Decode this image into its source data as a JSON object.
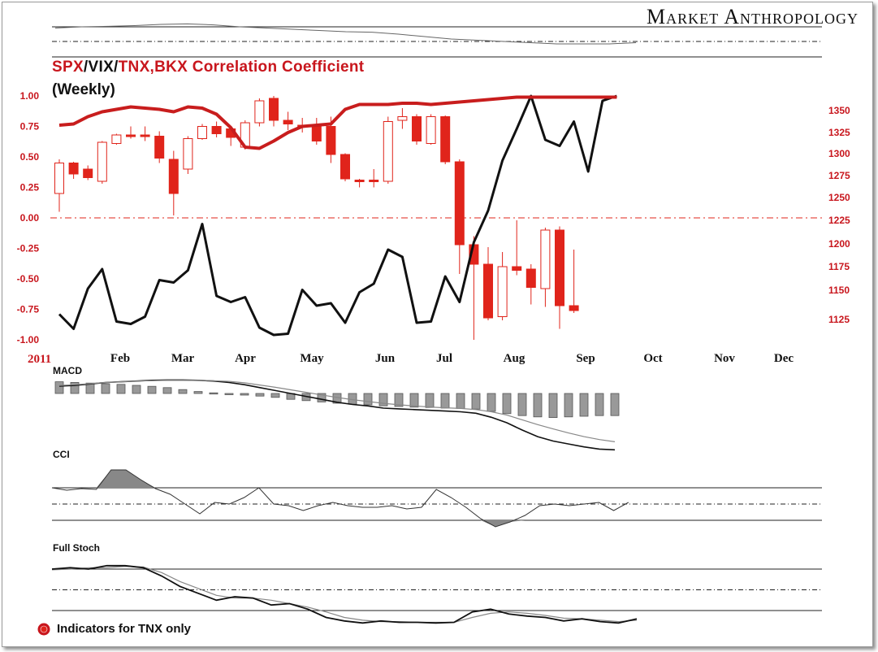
{
  "brand": "Market Anthropology",
  "title_parts": [
    "SPX",
    "/",
    "VIX",
    "/",
    "TNX,BKX",
    " Correlation Coefficient"
  ],
  "subtitle": "(Weekly)",
  "footnote": "Indicators for TNX only",
  "indicator_labels": {
    "macd": "MACD",
    "cci": "CCI",
    "stoch": "Full Stoch"
  },
  "colors": {
    "red": "#e0241b",
    "dark_red": "#c8161d",
    "black": "#111111",
    "gray": "#888888"
  },
  "chart_data": {
    "type": "line",
    "title": "SPX/VIX/TNX,BKX Correlation Coefficient",
    "subtitle": "(Weekly)",
    "x_year_label": "2011",
    "x_tick_labels": [
      "Feb",
      "Mar",
      "Apr",
      "May",
      "Jun",
      "Jul",
      "Aug",
      "Sep",
      "Oct",
      "Nov",
      "Dec"
    ],
    "left_axis": {
      "ticks": [
        "1.00",
        "0.75",
        "0.50",
        "0.25",
        "0.00",
        "-0.25",
        "-0.50",
        "-0.75",
        "-1.00"
      ],
      "ylim": [
        -1,
        1
      ]
    },
    "right_axis": {
      "ticks": [
        "1350",
        "1325",
        "1300",
        "1275",
        "1250",
        "1225",
        "1200",
        "1175",
        "1150",
        "1125"
      ]
    },
    "zero_line": 0,
    "series": [
      {
        "color": "black",
        "values": [
          -0.79,
          -0.91,
          -0.58,
          -0.42,
          -0.85,
          -0.87,
          -0.81,
          -0.51,
          -0.53,
          -0.43,
          -0.05,
          -0.64,
          -0.69,
          -0.65,
          -0.9,
          -0.96,
          -0.95,
          -0.59,
          -0.72,
          -0.7,
          -0.86,
          -0.61,
          -0.54,
          -0.26,
          -0.32,
          -0.86,
          -0.85,
          -0.48,
          -0.69,
          -0.2,
          0.06,
          0.47,
          0.73,
          1.0,
          0.64,
          0.59,
          0.79,
          0.38,
          0.96,
          1.0
        ]
      },
      {
        "color": "red",
        "values": [
          0.76,
          0.77,
          0.83,
          0.87,
          0.89,
          0.91,
          0.9,
          0.89,
          0.87,
          0.91,
          0.9,
          0.85,
          0.74,
          0.58,
          0.57,
          0.63,
          0.7,
          0.75,
          0.76,
          0.77,
          0.89,
          0.93,
          0.93,
          0.93,
          0.94,
          0.94,
          0.93,
          0.94,
          0.95,
          0.96,
          0.97,
          0.98,
          0.99,
          0.99,
          0.99,
          0.99,
          0.99,
          0.99,
          0.99,
          0.99
        ]
      }
    ],
    "candles": [
      {
        "o": 0.2,
        "c": 0.45,
        "h": 0.48,
        "l": 0.05,
        "up": true
      },
      {
        "o": 0.45,
        "c": 0.36,
        "h": 0.46,
        "l": 0.32,
        "up": false
      },
      {
        "o": 0.4,
        "c": 0.33,
        "h": 0.43,
        "l": 0.31,
        "up": false
      },
      {
        "o": 0.3,
        "c": 0.62,
        "h": 0.63,
        "l": 0.28,
        "up": true
      },
      {
        "o": 0.61,
        "c": 0.68,
        "h": 0.69,
        "l": 0.6,
        "up": true
      },
      {
        "o": 0.68,
        "c": 0.68,
        "h": 0.75,
        "l": 0.65,
        "up": false
      },
      {
        "o": 0.68,
        "c": 0.67,
        "h": 0.75,
        "l": 0.63,
        "up": false
      },
      {
        "o": 0.67,
        "c": 0.49,
        "h": 0.71,
        "l": 0.45,
        "up": false
      },
      {
        "o": 0.48,
        "c": 0.2,
        "h": 0.55,
        "l": 0.02,
        "up": false
      },
      {
        "o": 0.4,
        "c": 0.65,
        "h": 0.67,
        "l": 0.36,
        "up": true
      },
      {
        "o": 0.65,
        "c": 0.75,
        "h": 0.77,
        "l": 0.64,
        "up": true
      },
      {
        "o": 0.75,
        "c": 0.69,
        "h": 0.79,
        "l": 0.66,
        "up": false
      },
      {
        "o": 0.73,
        "c": 0.66,
        "h": 0.75,
        "l": 0.59,
        "up": false
      },
      {
        "o": 0.58,
        "c": 0.78,
        "h": 0.8,
        "l": 0.56,
        "up": true
      },
      {
        "o": 0.78,
        "c": 0.96,
        "h": 0.98,
        "l": 0.75,
        "up": true
      },
      {
        "o": 0.98,
        "c": 0.8,
        "h": 1.0,
        "l": 0.75,
        "up": false
      },
      {
        "o": 0.8,
        "c": 0.77,
        "h": 0.87,
        "l": 0.72,
        "up": false
      },
      {
        "o": 0.75,
        "c": 0.76,
        "h": 0.82,
        "l": 0.7,
        "up": false
      },
      {
        "o": 0.75,
        "c": 0.63,
        "h": 0.82,
        "l": 0.6,
        "up": false
      },
      {
        "o": 0.75,
        "c": 0.52,
        "h": 0.83,
        "l": 0.45,
        "up": false
      },
      {
        "o": 0.52,
        "c": 0.32,
        "h": 0.53,
        "l": 0.3,
        "up": false
      },
      {
        "o": 0.31,
        "c": 0.31,
        "h": 0.32,
        "l": 0.25,
        "up": false
      },
      {
        "o": 0.31,
        "c": 0.3,
        "h": 0.4,
        "l": 0.25,
        "up": false
      },
      {
        "o": 0.3,
        "c": 0.79,
        "h": 0.83,
        "l": 0.28,
        "up": true
      },
      {
        "o": 0.8,
        "c": 0.83,
        "h": 0.9,
        "l": 0.73,
        "up": true
      },
      {
        "o": 0.83,
        "c": 0.63,
        "h": 0.85,
        "l": 0.6,
        "up": false
      },
      {
        "o": 0.61,
        "c": 0.83,
        "h": 0.85,
        "l": 0.6,
        "up": true
      },
      {
        "o": 0.83,
        "c": 0.46,
        "h": 0.84,
        "l": 0.44,
        "up": false
      },
      {
        "o": 0.46,
        "c": -0.22,
        "h": 0.48,
        "l": -0.46,
        "up": false
      },
      {
        "o": -0.22,
        "c": -0.38,
        "h": -0.15,
        "l": -1.0,
        "up": false
      },
      {
        "o": -0.38,
        "c": -0.82,
        "h": -0.24,
        "l": -0.84,
        "up": false
      },
      {
        "o": -0.81,
        "c": -0.4,
        "h": -0.28,
        "l": -0.84,
        "up": true
      },
      {
        "o": -0.4,
        "c": -0.43,
        "h": -0.02,
        "l": -0.47,
        "up": false
      },
      {
        "o": -0.42,
        "c": -0.57,
        "h": -0.38,
        "l": -0.71,
        "up": false
      },
      {
        "o": -0.58,
        "c": -0.1,
        "h": -0.08,
        "l": -0.73,
        "up": true
      },
      {
        "o": -0.1,
        "c": -0.72,
        "h": -0.07,
        "l": -0.91,
        "up": false
      },
      {
        "o": -0.72,
        "c": -0.76,
        "h": -0.26,
        "l": -0.78,
        "up": false
      }
    ],
    "macd": {
      "hist": [
        0.36,
        0.34,
        0.32,
        0.3,
        0.28,
        0.25,
        0.22,
        0.18,
        0.12,
        0.06,
        0.02,
        -0.02,
        -0.05,
        -0.08,
        -0.12,
        -0.18,
        -0.22,
        -0.26,
        -0.3,
        -0.33,
        -0.35,
        -0.38,
        -0.4,
        -0.42,
        -0.43,
        -0.45,
        -0.46,
        -0.48,
        -0.55,
        -0.62,
        -0.68,
        -0.72,
        -0.74,
        -0.72,
        -0.7,
        -0.68,
        -0.68
      ],
      "macd_line": [
        0.0,
        0.02,
        0.06,
        0.1,
        0.12,
        0.14,
        0.16,
        0.17,
        0.17,
        0.16,
        0.14,
        0.1,
        0.04,
        -0.04,
        -0.12,
        -0.2,
        -0.28,
        -0.36,
        -0.44,
        -0.5,
        -0.54,
        -0.6,
        -0.62,
        -0.64,
        -0.66,
        -0.68,
        -0.7,
        -0.74,
        -0.85,
        -1.0,
        -1.2,
        -1.38,
        -1.5,
        -1.58,
        -1.66,
        -1.72,
        -1.74
      ],
      "signal_line": [
        0.02,
        0.04,
        0.07,
        0.1,
        0.12,
        0.14,
        0.15,
        0.16,
        0.16,
        0.16,
        0.15,
        0.13,
        0.09,
        0.03,
        -0.03,
        -0.1,
        -0.17,
        -0.24,
        -0.31,
        -0.37,
        -0.42,
        -0.47,
        -0.51,
        -0.54,
        -0.57,
        -0.59,
        -0.61,
        -0.64,
        -0.7,
        -0.79,
        -0.92,
        -1.05,
        -1.17,
        -1.28,
        -1.38,
        -1.46,
        -1.52
      ]
    },
    "cci": {
      "levels": [
        100,
        0,
        -100
      ],
      "values": [
        100,
        85,
        95,
        90,
        210,
        210,
        150,
        95,
        60,
        0,
        -60,
        10,
        0,
        40,
        100,
        0,
        -10,
        -40,
        -10,
        10,
        -10,
        -20,
        -20,
        -10,
        -30,
        -20,
        90,
        40,
        -20,
        -90,
        -140,
        -110,
        -70,
        -10,
        0,
        -10,
        0,
        10,
        -40,
        10
      ]
    },
    "stoch": {
      "levels": [
        80,
        50,
        20
      ],
      "k": [
        80,
        82,
        80,
        85,
        85,
        82,
        70,
        55,
        45,
        35,
        40,
        38,
        28,
        30,
        22,
        10,
        5,
        2,
        5,
        3,
        3,
        2,
        3,
        18,
        22,
        15,
        12,
        10,
        5,
        8,
        4,
        2,
        8
      ],
      "d": [
        79,
        80,
        82,
        82,
        84,
        83,
        75,
        62,
        52,
        42,
        38,
        38,
        35,
        30,
        25,
        18,
        10,
        6,
        4,
        4,
        3,
        3,
        3,
        10,
        16,
        18,
        16,
        13,
        9,
        8,
        6,
        4,
        6
      ]
    },
    "top_panel": {
      "type": "line",
      "values": [
        0.55,
        0.6,
        0.62,
        0.65,
        0.7,
        0.72,
        0.68,
        0.6,
        0.55,
        0.5,
        0.45,
        0.4,
        0.38,
        0.3,
        0.2,
        0.1,
        0.05,
        0.0,
        -0.05,
        -0.1,
        -0.1,
        -0.1,
        -0.05
      ]
    }
  }
}
